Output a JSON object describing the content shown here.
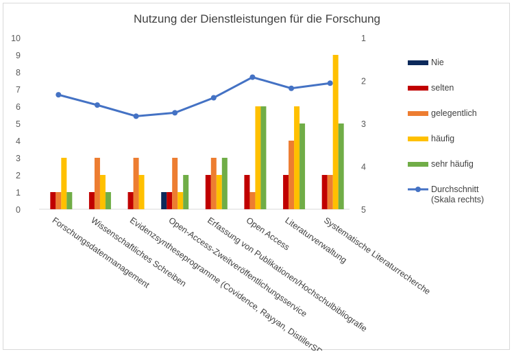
{
  "chart_data": {
    "type": "bar",
    "title": "Nutzung der Dienstleistungen für die Forschung",
    "categories": [
      "Forschungsdatenmanagement",
      "Wissenschaftliches Schreiben",
      "Evidenzsyntheseprogramme (Covidence, Rayyan, DistillerSR, ...)",
      "Open-Access-Zweitveröffentlichungsservice",
      "Erfassung von Publikationen/Hochschulbibliografie",
      "Open Access",
      "Literaturverwaltung",
      "Systematische Literaturrecherche"
    ],
    "ylim": [
      0,
      10
    ],
    "y_ticks": [
      "0",
      "1",
      "2",
      "3",
      "4",
      "5",
      "6",
      "7",
      "8",
      "9",
      "10"
    ],
    "y2_ticks": [
      "1",
      "2",
      "3",
      "4",
      "5"
    ],
    "y2lim": [
      5,
      1
    ],
    "legend_position": "right",
    "series": [
      {
        "name": "Nie",
        "color": "#0c2a5b",
        "values": [
          0,
          0,
          0,
          1,
          0,
          0,
          0,
          0
        ]
      },
      {
        "name": "selten",
        "color": "#c00000",
        "values": [
          1,
          1,
          1,
          1,
          2,
          2,
          2,
          2
        ]
      },
      {
        "name": "gelegentlich",
        "color": "#ed7d31",
        "values": [
          1,
          3,
          3,
          3,
          3,
          1,
          4,
          2
        ]
      },
      {
        "name": "häufig",
        "color": "#ffc000",
        "values": [
          3,
          2,
          2,
          1,
          2,
          6,
          6,
          9
        ]
      },
      {
        "name": "sehr häufig",
        "color": "#70ad47",
        "values": [
          1,
          1,
          0,
          2,
          3,
          6,
          5,
          5
        ]
      }
    ],
    "line_series": {
      "name": "Durchschnitt",
      "name_line2": "(Skala rechts)",
      "color": "#4472c4",
      "axis": "right",
      "values": [
        2.33,
        2.57,
        2.83,
        2.75,
        2.4,
        1.92,
        2.18,
        2.06
      ]
    }
  }
}
